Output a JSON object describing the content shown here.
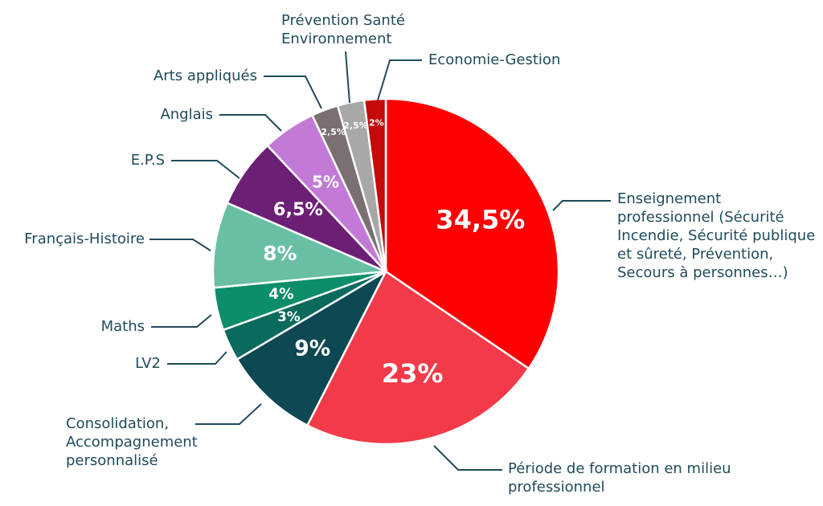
{
  "chart_data": {
    "type": "pie",
    "categories": [
      "Enseignement professionnel (Sécurité Incendie, Sécurité publique et sûreté, Prévention, Secours à personnes…)",
      "Période de formation en milieu professionnel",
      "Consolidation, Accompagnement personnalisé",
      "LV2",
      "Maths",
      "Français-Histoire",
      "E.P.S",
      "Anglais",
      "Arts appliqués",
      "Prévention Santé Environnement",
      "Economie-Gestion"
    ],
    "values": [
      34.5,
      23,
      9,
      3,
      4,
      8,
      6.5,
      5,
      2.5,
      2.5,
      2
    ],
    "value_labels": [
      "34,5%",
      "23%",
      "9%",
      "3%",
      "4%",
      "8%",
      "6,5%",
      "5%",
      "2,5%",
      "2,5%",
      "2%"
    ],
    "colors": [
      "#ff0000",
      "#f23a48",
      "#0d4853",
      "#0a6a5c",
      "#0b8e69",
      "#68bfa6",
      "#6b1f75",
      "#c27ad6",
      "#7a7071",
      "#a8a8a8",
      "#c40a0a"
    ]
  }
}
